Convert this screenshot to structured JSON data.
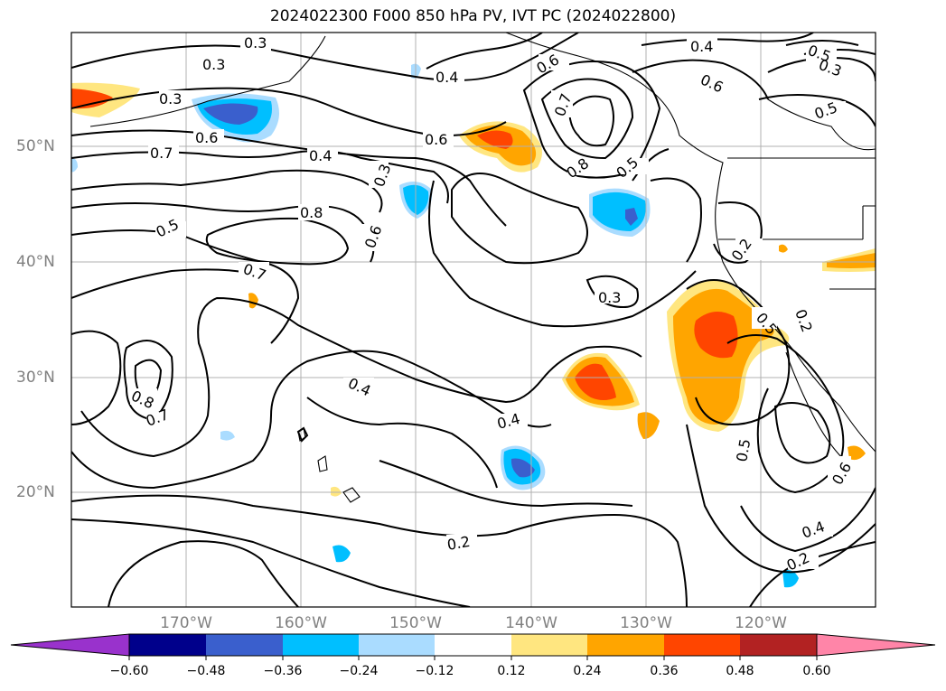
{
  "title": "2024022300 F000 850 hPa PV, IVT PC (2024022800)",
  "map": {
    "lon_labels": [
      "170°W",
      "160°W",
      "150°W",
      "140°W",
      "130°W",
      "120°W"
    ],
    "lat_labels": [
      "50°N",
      "40°N",
      "30°N",
      "20°N"
    ],
    "contour_labels": [
      "0.2",
      "0.2",
      "0.2",
      "0.3",
      "0.3",
      "0.3",
      "0.3",
      "0.3",
      "0.4",
      "0.4",
      "0.4",
      "0.4",
      "0.4",
      "0.5",
      "0.5",
      "0.5",
      "0.5",
      "0.5",
      "0.6",
      "0.6",
      "0.6",
      "0.6",
      "0.6",
      "0.7",
      "0.7",
      "0.7",
      "0.7",
      "0.8",
      "0.8",
      "0.8",
      "0.2",
      "0.4",
      "0.6",
      "0.3",
      "0.5"
    ],
    "shading_colors": {
      "pos_0.12": "#ffe680",
      "pos_0.24": "#ffa500",
      "pos_0.36": "#ff4500",
      "neg_0.12": "#aadcff",
      "neg_0.24": "#00bfff",
      "neg_0.36": "#3a5fcd"
    }
  },
  "colorbar": {
    "ticks": [
      "−0.60",
      "−0.48",
      "−0.36",
      "−0.24",
      "−0.12",
      "0.12",
      "0.24",
      "0.36",
      "0.48",
      "0.60"
    ],
    "colors": [
      "#9932cc",
      "#00008b",
      "#3a5fcd",
      "#00bfff",
      "#aadcff",
      "#ffffff",
      "#ffe680",
      "#ffa500",
      "#ff4500",
      "#b22222",
      "#ff85a8",
      "#ff85a8"
    ]
  }
}
